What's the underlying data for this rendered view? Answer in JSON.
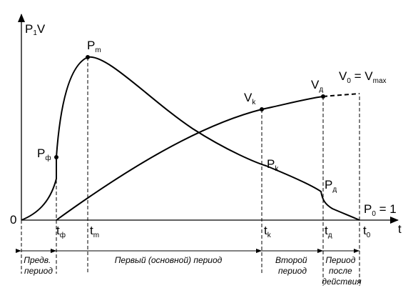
{
  "axes": {
    "y_label_main": "P",
    "y_label_sub": "1",
    "y_label_tail": "V",
    "x_label": "t",
    "origin": "0"
  },
  "points": {
    "p_front": {
      "main": "P",
      "sub": "ф"
    },
    "p_max": {
      "main": "P",
      "sub": "m"
    },
    "p_k": {
      "main": "P",
      "sub": "k"
    },
    "p_d": {
      "main": "P",
      "sub": "д"
    },
    "v_k": {
      "main": "V",
      "sub": "k"
    },
    "v_d": {
      "main": "V",
      "sub": "д"
    },
    "v_max": {
      "main_1": "V",
      "sub_1": "0",
      "eq": " = ",
      "main_2": "V",
      "sub_2": "max"
    },
    "p_zero": {
      "main": "P",
      "sub": "0",
      "tail": " = 1"
    }
  },
  "ticks": [
    {
      "main": "t",
      "sub": "ф"
    },
    {
      "main": "t",
      "sub": "m"
    },
    {
      "main": "t",
      "sub": "k"
    },
    {
      "main": "t",
      "sub": "д"
    },
    {
      "main": "t",
      "sub": "0"
    }
  ],
  "periods": {
    "pre": [
      "Предв.",
      "период"
    ],
    "first": "Первый (основной) период",
    "second": [
      "Второй",
      "период"
    ],
    "after": [
      "Период",
      "после",
      "действия"
    ]
  }
}
